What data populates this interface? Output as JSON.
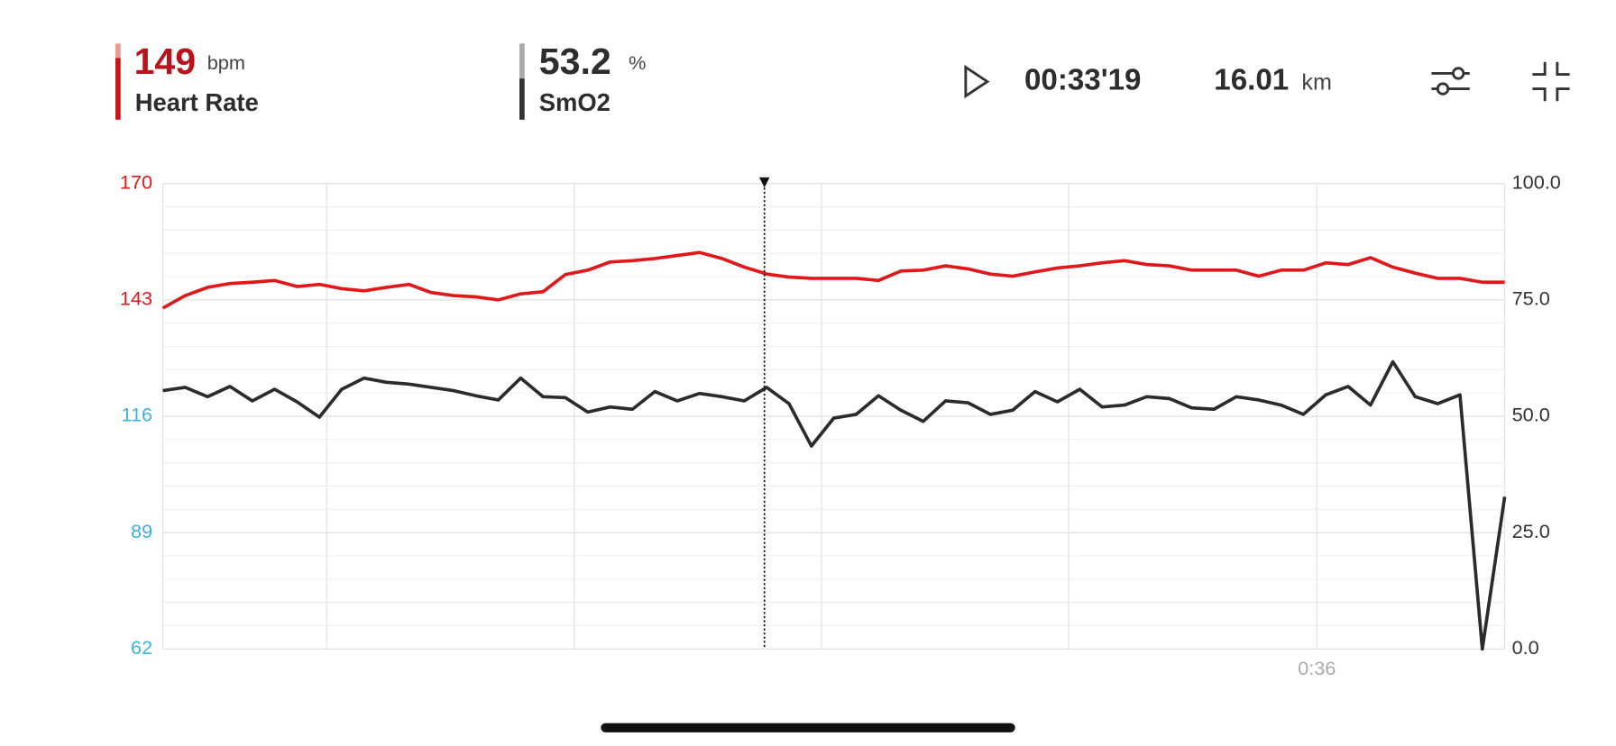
{
  "header": {
    "heart_rate": {
      "value": 149,
      "unit": "bpm",
      "label": "Heart Rate"
    },
    "smo2": {
      "value": 53.2,
      "unit": "%",
      "label": "SmO2"
    },
    "duration": "00:33'19",
    "distance": {
      "value": 16.01,
      "unit": "km"
    }
  },
  "chart_data": {
    "type": "line",
    "xlim": [
      0,
      60
    ],
    "xticks": [
      {
        "value": 51.6,
        "label": "0:36"
      }
    ],
    "xgrid": [
      7.33,
      18.39,
      29.45,
      40.5,
      51.6
    ],
    "cursor": 26.9,
    "ylim": [
      62,
      170
    ],
    "yticks": [
      62,
      89,
      116,
      143,
      170
    ],
    "ytick_colors": [
      "#3db2e0",
      "#3db2e0",
      "#3db2e0",
      "#e0181b",
      "#e0181b"
    ],
    "y2lim": [
      0,
      100
    ],
    "y2ticks": [
      {
        "value": 0,
        "label": "0.0"
      },
      {
        "value": 25,
        "label": "25.0"
      },
      {
        "value": 50,
        "label": "50.0"
      },
      {
        "value": 75,
        "label": "75.0"
      },
      {
        "value": 100,
        "label": "100.0"
      }
    ],
    "series": [
      {
        "name": "Heart Rate",
        "color": "#e0181b",
        "values": [
          141.1,
          144,
          145.9,
          146.8,
          147.1,
          147.5,
          146.1,
          146.6,
          145.6,
          145.1,
          145.9,
          146.6,
          144.7,
          144,
          143.7,
          143,
          144.4,
          144.9,
          148.9,
          149.9,
          151.8,
          152.1,
          152.6,
          153.3,
          154,
          152.6,
          150.6,
          149,
          148.3,
          148,
          148,
          148,
          147.5,
          149.7,
          149.9,
          150.9,
          150.2,
          149,
          148.5,
          149.5,
          150.4,
          150.9,
          151.6,
          152.1,
          151.2,
          150.9,
          149.9,
          149.9,
          149.9,
          148.5,
          149.9,
          149.9,
          151.6,
          151.2,
          152.8,
          150.6,
          149.2,
          148,
          148,
          147.1,
          147.1
        ]
      },
      {
        "name": "SmO2",
        "color": "#2b2b2b",
        "axis": "y2",
        "values": [
          55.5,
          56.2,
          54.2,
          56.4,
          53.3,
          55.8,
          53.1,
          49.8,
          55.8,
          58.2,
          57.3,
          56.9,
          56.2,
          55.5,
          54.4,
          53.5,
          58.2,
          54.2,
          54,
          50.9,
          52,
          51.5,
          55.3,
          53.3,
          54.9,
          54.2,
          53.3,
          56.2,
          52.7,
          43.6,
          49.6,
          50.4,
          54.4,
          51.3,
          48.9,
          53.3,
          52.9,
          50.4,
          51.3,
          55.3,
          53.1,
          55.8,
          52,
          52.4,
          54.2,
          53.8,
          51.8,
          51.5,
          54.2,
          53.5,
          52.4,
          50.4,
          54.6,
          56.4,
          52.4,
          61.7,
          54.2,
          52.7,
          54.6,
          0,
          32.7
        ]
      }
    ]
  }
}
